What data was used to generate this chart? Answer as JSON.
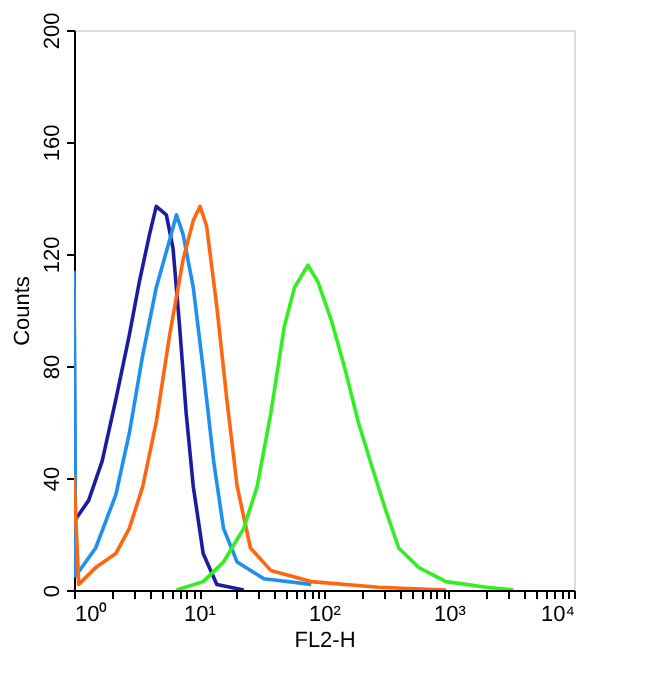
{
  "chart_data": {
    "type": "line",
    "xlabel": "FL2-H",
    "ylabel": "Counts",
    "log": "x",
    "xlim": [
      1,
      10000
    ],
    "ylim": [
      0,
      200
    ],
    "xticks": [
      {
        "value": 1,
        "label": "10⁰"
      },
      {
        "value": 2,
        "label": null
      },
      {
        "value": 3,
        "label": null
      },
      {
        "value": 4,
        "label": null
      },
      {
        "value": 5,
        "label": null
      },
      {
        "value": 6,
        "label": null
      },
      {
        "value": 7,
        "label": null
      },
      {
        "value": 8,
        "label": null
      },
      {
        "value": 9,
        "label": null
      },
      {
        "value": 10,
        "label": "10¹"
      },
      {
        "value": 20,
        "label": null
      },
      {
        "value": 30,
        "label": null
      },
      {
        "value": 40,
        "label": null
      },
      {
        "value": 50,
        "label": null
      },
      {
        "value": 60,
        "label": null
      },
      {
        "value": 70,
        "label": null
      },
      {
        "value": 80,
        "label": null
      },
      {
        "value": 90,
        "label": null
      },
      {
        "value": 100,
        "label": "10²"
      },
      {
        "value": 200,
        "label": null
      },
      {
        "value": 300,
        "label": null
      },
      {
        "value": 400,
        "label": null
      },
      {
        "value": 500,
        "label": null
      },
      {
        "value": 600,
        "label": null
      },
      {
        "value": 700,
        "label": null
      },
      {
        "value": 800,
        "label": null
      },
      {
        "value": 900,
        "label": null
      },
      {
        "value": 1000,
        "label": "10³"
      },
      {
        "value": 2000,
        "label": null
      },
      {
        "value": 3000,
        "label": null
      },
      {
        "value": 4000,
        "label": null
      },
      {
        "value": 5000,
        "label": null
      },
      {
        "value": 6000,
        "label": null
      },
      {
        "value": 7000,
        "label": null
      },
      {
        "value": 8000,
        "label": null
      },
      {
        "value": 9000,
        "label": null
      },
      {
        "value": 10000,
        "label": "10⁴"
      }
    ],
    "yticks": [
      0,
      40,
      80,
      120,
      160,
      200
    ],
    "grid": false,
    "legend": false,
    "marker": "none",
    "line_style": "solid",
    "series": [
      {
        "color": "#1c1ca0",
        "x": [
          1,
          1.02,
          1.31,
          1.68,
          2.16,
          2.77,
          3.33,
          4.02,
          4.55,
          5.48,
          6.2,
          7.0,
          7.9,
          9.0,
          10.8,
          13.9,
          22.8
        ],
        "values": [
          113,
          25,
          32,
          46,
          68,
          91,
          110,
          127,
          137,
          134,
          122,
          94,
          63,
          37,
          13,
          2,
          0
        ]
      },
      {
        "color": "#1e90f0",
        "x": [
          1,
          1.03,
          1.49,
          2.16,
          2.77,
          3.55,
          4.55,
          5.82,
          6.6,
          7.46,
          9.0,
          10.8,
          13.1,
          15.7,
          20.2,
          33.1,
          79
        ],
        "values": [
          114,
          5,
          15,
          34,
          56,
          84,
          108,
          125,
          134,
          127,
          108,
          79,
          46,
          22,
          10,
          4,
          2
        ]
      },
      {
        "color": "#ff6611",
        "x": [
          1,
          1.09,
          1.49,
          2.16,
          2.77,
          3.55,
          4.55,
          5.82,
          7.46,
          9.0,
          10.2,
          11.5,
          13.9,
          16.7,
          20.2,
          25.8,
          37.5,
          79,
          273,
          946
        ],
        "values": [
          41,
          2,
          8,
          13,
          22,
          37,
          60,
          91,
          118,
          132,
          137,
          130,
          101,
          68,
          37,
          15,
          7,
          3,
          1,
          0
        ]
      },
      {
        "color": "#33ee22",
        "x": [
          6.6,
          10.8,
          15.7,
          22.8,
          29.2,
          37.5,
          48.1,
          58,
          74.3,
          89.5,
          115,
          147,
          188,
          242,
          309,
          396,
          575,
          946,
          1991,
          3273
        ],
        "values": [
          0,
          3,
          10,
          22,
          37,
          63,
          94,
          108,
          116,
          110,
          96,
          79,
          60,
          44,
          29,
          15,
          8,
          3,
          1,
          0
        ]
      }
    ]
  }
}
